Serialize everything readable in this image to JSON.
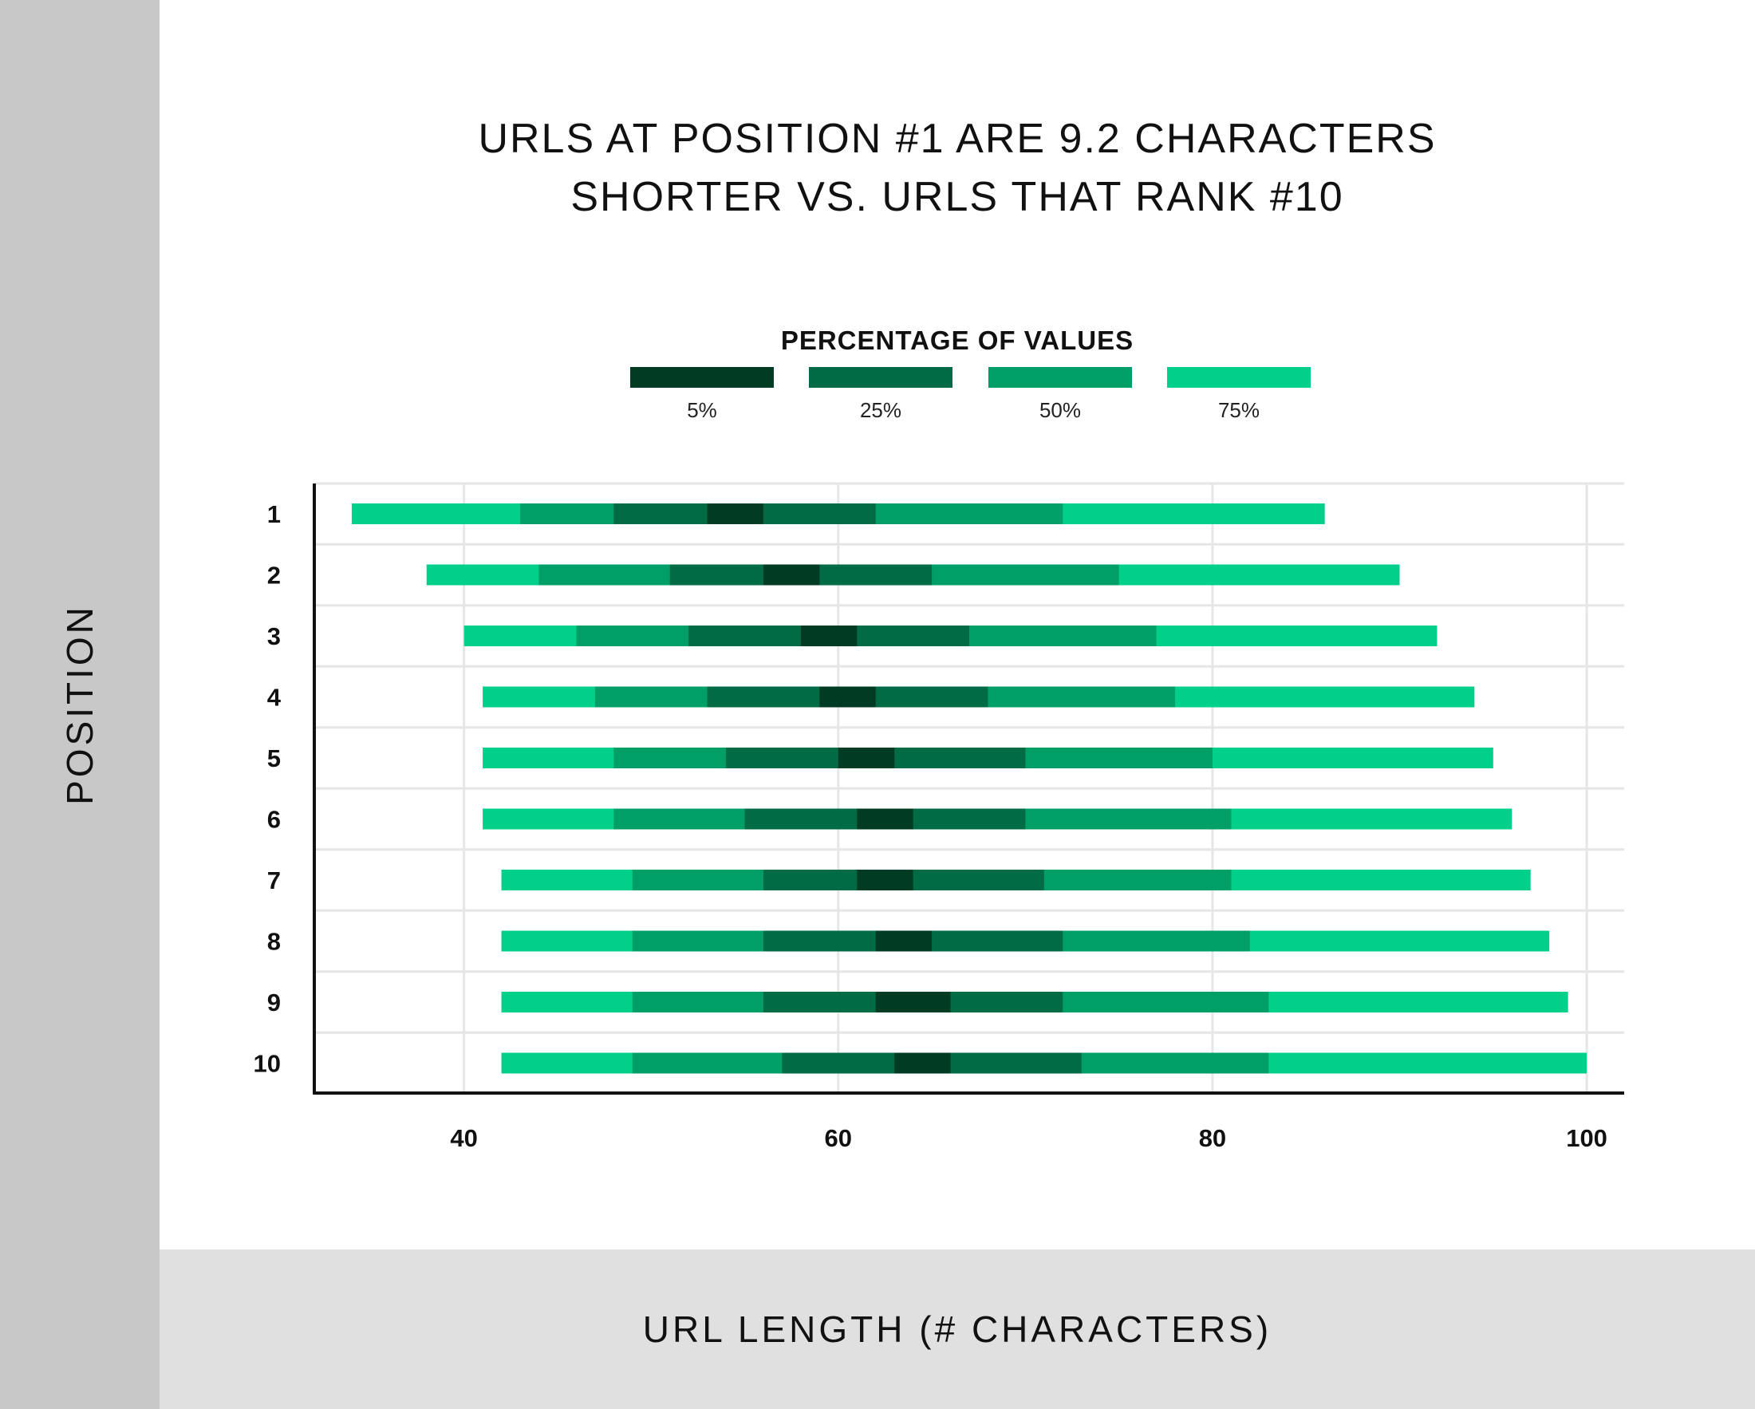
{
  "title_lines": [
    "URLS AT POSITION #1 ARE 9.2 CHARACTERS",
    "SHORTER VS. URLS THAT RANK #10"
  ],
  "ylabel": "POSITION",
  "xlabel": "URL LENGTH (# CHARACTERS)",
  "legend_title": "PERCENTAGE OF VALUES",
  "colors": {
    "p5": "#003b24",
    "p25": "#006b45",
    "p50": "#009f68",
    "p75": "#00d08a",
    "axis": "#111111",
    "grid": "#e6e6e6",
    "left_panel": "#c8c8c8",
    "bottom_panel": "#e0e0e0"
  },
  "chart_data": {
    "type": "bar",
    "orientation": "horizontal-range",
    "title": "URLS AT POSITION #1 ARE 9.2 CHARACTERS SHORTER VS. URLS THAT RANK #10",
    "xlabel": "URL LENGTH (# CHARACTERS)",
    "ylabel": "POSITION",
    "xlim": [
      32,
      102
    ],
    "x_ticks": [
      40,
      60,
      80,
      100
    ],
    "categories": [
      "1",
      "2",
      "3",
      "4",
      "5",
      "6",
      "7",
      "8",
      "9",
      "10"
    ],
    "legend": {
      "title": "PERCENTAGE OF VALUES",
      "placement": "top-center",
      "entries": [
        {
          "label": "5%",
          "color_key": "p5"
        },
        {
          "label": "25%",
          "color_key": "p25"
        },
        {
          "label": "50%",
          "color_key": "p50"
        },
        {
          "label": "75%",
          "color_key": "p75"
        }
      ]
    },
    "grid": true,
    "rows": [
      {
        "position": "1",
        "b75": [
          34,
          86
        ],
        "b50": [
          43,
          72
        ],
        "b25": [
          48,
          62
        ],
        "b5": [
          53,
          56
        ]
      },
      {
        "position": "2",
        "b75": [
          38,
          90
        ],
        "b50": [
          44,
          75
        ],
        "b25": [
          51,
          65
        ],
        "b5": [
          56,
          59
        ]
      },
      {
        "position": "3",
        "b75": [
          40,
          92
        ],
        "b50": [
          46,
          77
        ],
        "b25": [
          52,
          67
        ],
        "b5": [
          58,
          61
        ]
      },
      {
        "position": "4",
        "b75": [
          41,
          94
        ],
        "b50": [
          47,
          78
        ],
        "b25": [
          53,
          68
        ],
        "b5": [
          59,
          62
        ]
      },
      {
        "position": "5",
        "b75": [
          41,
          95
        ],
        "b50": [
          48,
          80
        ],
        "b25": [
          54,
          70
        ],
        "b5": [
          60,
          63
        ]
      },
      {
        "position": "6",
        "b75": [
          41,
          96
        ],
        "b50": [
          48,
          81
        ],
        "b25": [
          55,
          70
        ],
        "b5": [
          61,
          64
        ]
      },
      {
        "position": "7",
        "b75": [
          42,
          97
        ],
        "b50": [
          49,
          81
        ],
        "b25": [
          56,
          71
        ],
        "b5": [
          61,
          64
        ]
      },
      {
        "position": "8",
        "b75": [
          42,
          98
        ],
        "b50": [
          49,
          82
        ],
        "b25": [
          56,
          72
        ],
        "b5": [
          62,
          65
        ]
      },
      {
        "position": "9",
        "b75": [
          42,
          99
        ],
        "b50": [
          49,
          83
        ],
        "b25": [
          56,
          72
        ],
        "b5": [
          62,
          66
        ]
      },
      {
        "position": "10",
        "b75": [
          42,
          100
        ],
        "b50": [
          49,
          83
        ],
        "b25": [
          57,
          73
        ],
        "b5": [
          63,
          66
        ]
      }
    ]
  }
}
